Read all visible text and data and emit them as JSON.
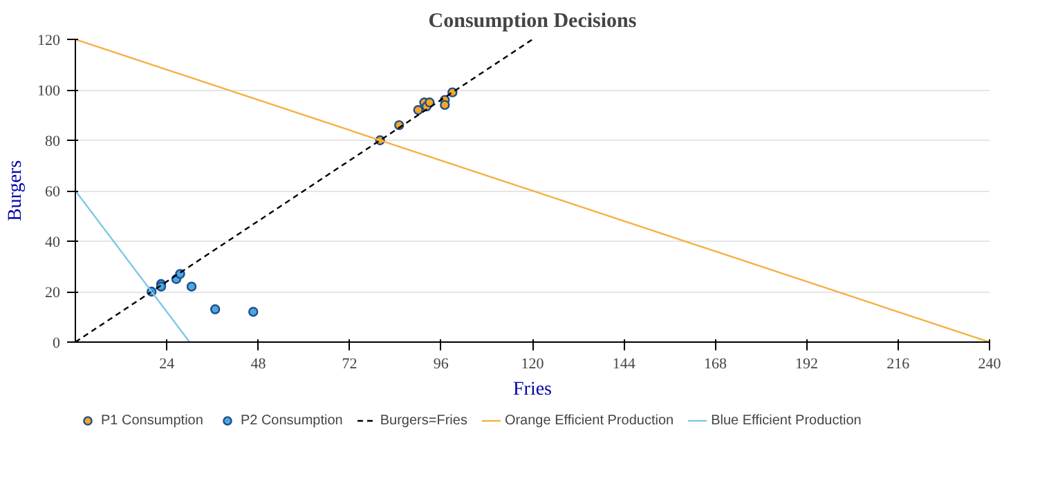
{
  "chart_data": {
    "type": "scatter",
    "title": "Consumption Decisions",
    "xlabel": "Fries",
    "ylabel": "Burgers",
    "xlim": [
      0,
      240
    ],
    "ylim": [
      0,
      120
    ],
    "xticks": [
      24,
      48,
      72,
      96,
      120,
      144,
      168,
      192,
      216,
      240
    ],
    "yticks": [
      0,
      20,
      40,
      60,
      80,
      100,
      120
    ],
    "grid": "y",
    "legend": "bottom",
    "series": [
      {
        "name": "P1 Consumption",
        "color": "#f5a623",
        "marker": "circle",
        "x": [
          80,
          85,
          90,
          91.6,
          92.2,
          93,
          97,
          97,
          99
        ],
        "values": [
          80,
          86,
          92,
          95,
          93.4,
          95,
          96,
          94,
          99
        ]
      },
      {
        "name": "P2 Consumption",
        "color": "#4aa8e0",
        "marker": "circle",
        "x": [
          20,
          22.5,
          22.5,
          26.5,
          27.5,
          30.5,
          36.7,
          46.7
        ],
        "values": [
          20,
          23,
          22,
          25,
          27,
          22,
          13,
          12
        ]
      },
      {
        "name": "Burgers=Fries",
        "type": "line",
        "line_style": "dashed",
        "color": "#000000",
        "x": [
          0,
          120
        ],
        "values": [
          0,
          120
        ]
      },
      {
        "name": "Orange Efficient Production",
        "type": "line",
        "line_style": "solid",
        "color": "#f5b041",
        "x": [
          0,
          240
        ],
        "values": [
          120,
          0
        ]
      },
      {
        "name": "Blue Efficient Production",
        "type": "line",
        "line_style": "solid",
        "color": "#7ec8e3",
        "x": [
          0,
          30
        ],
        "values": [
          60,
          0
        ]
      }
    ]
  }
}
